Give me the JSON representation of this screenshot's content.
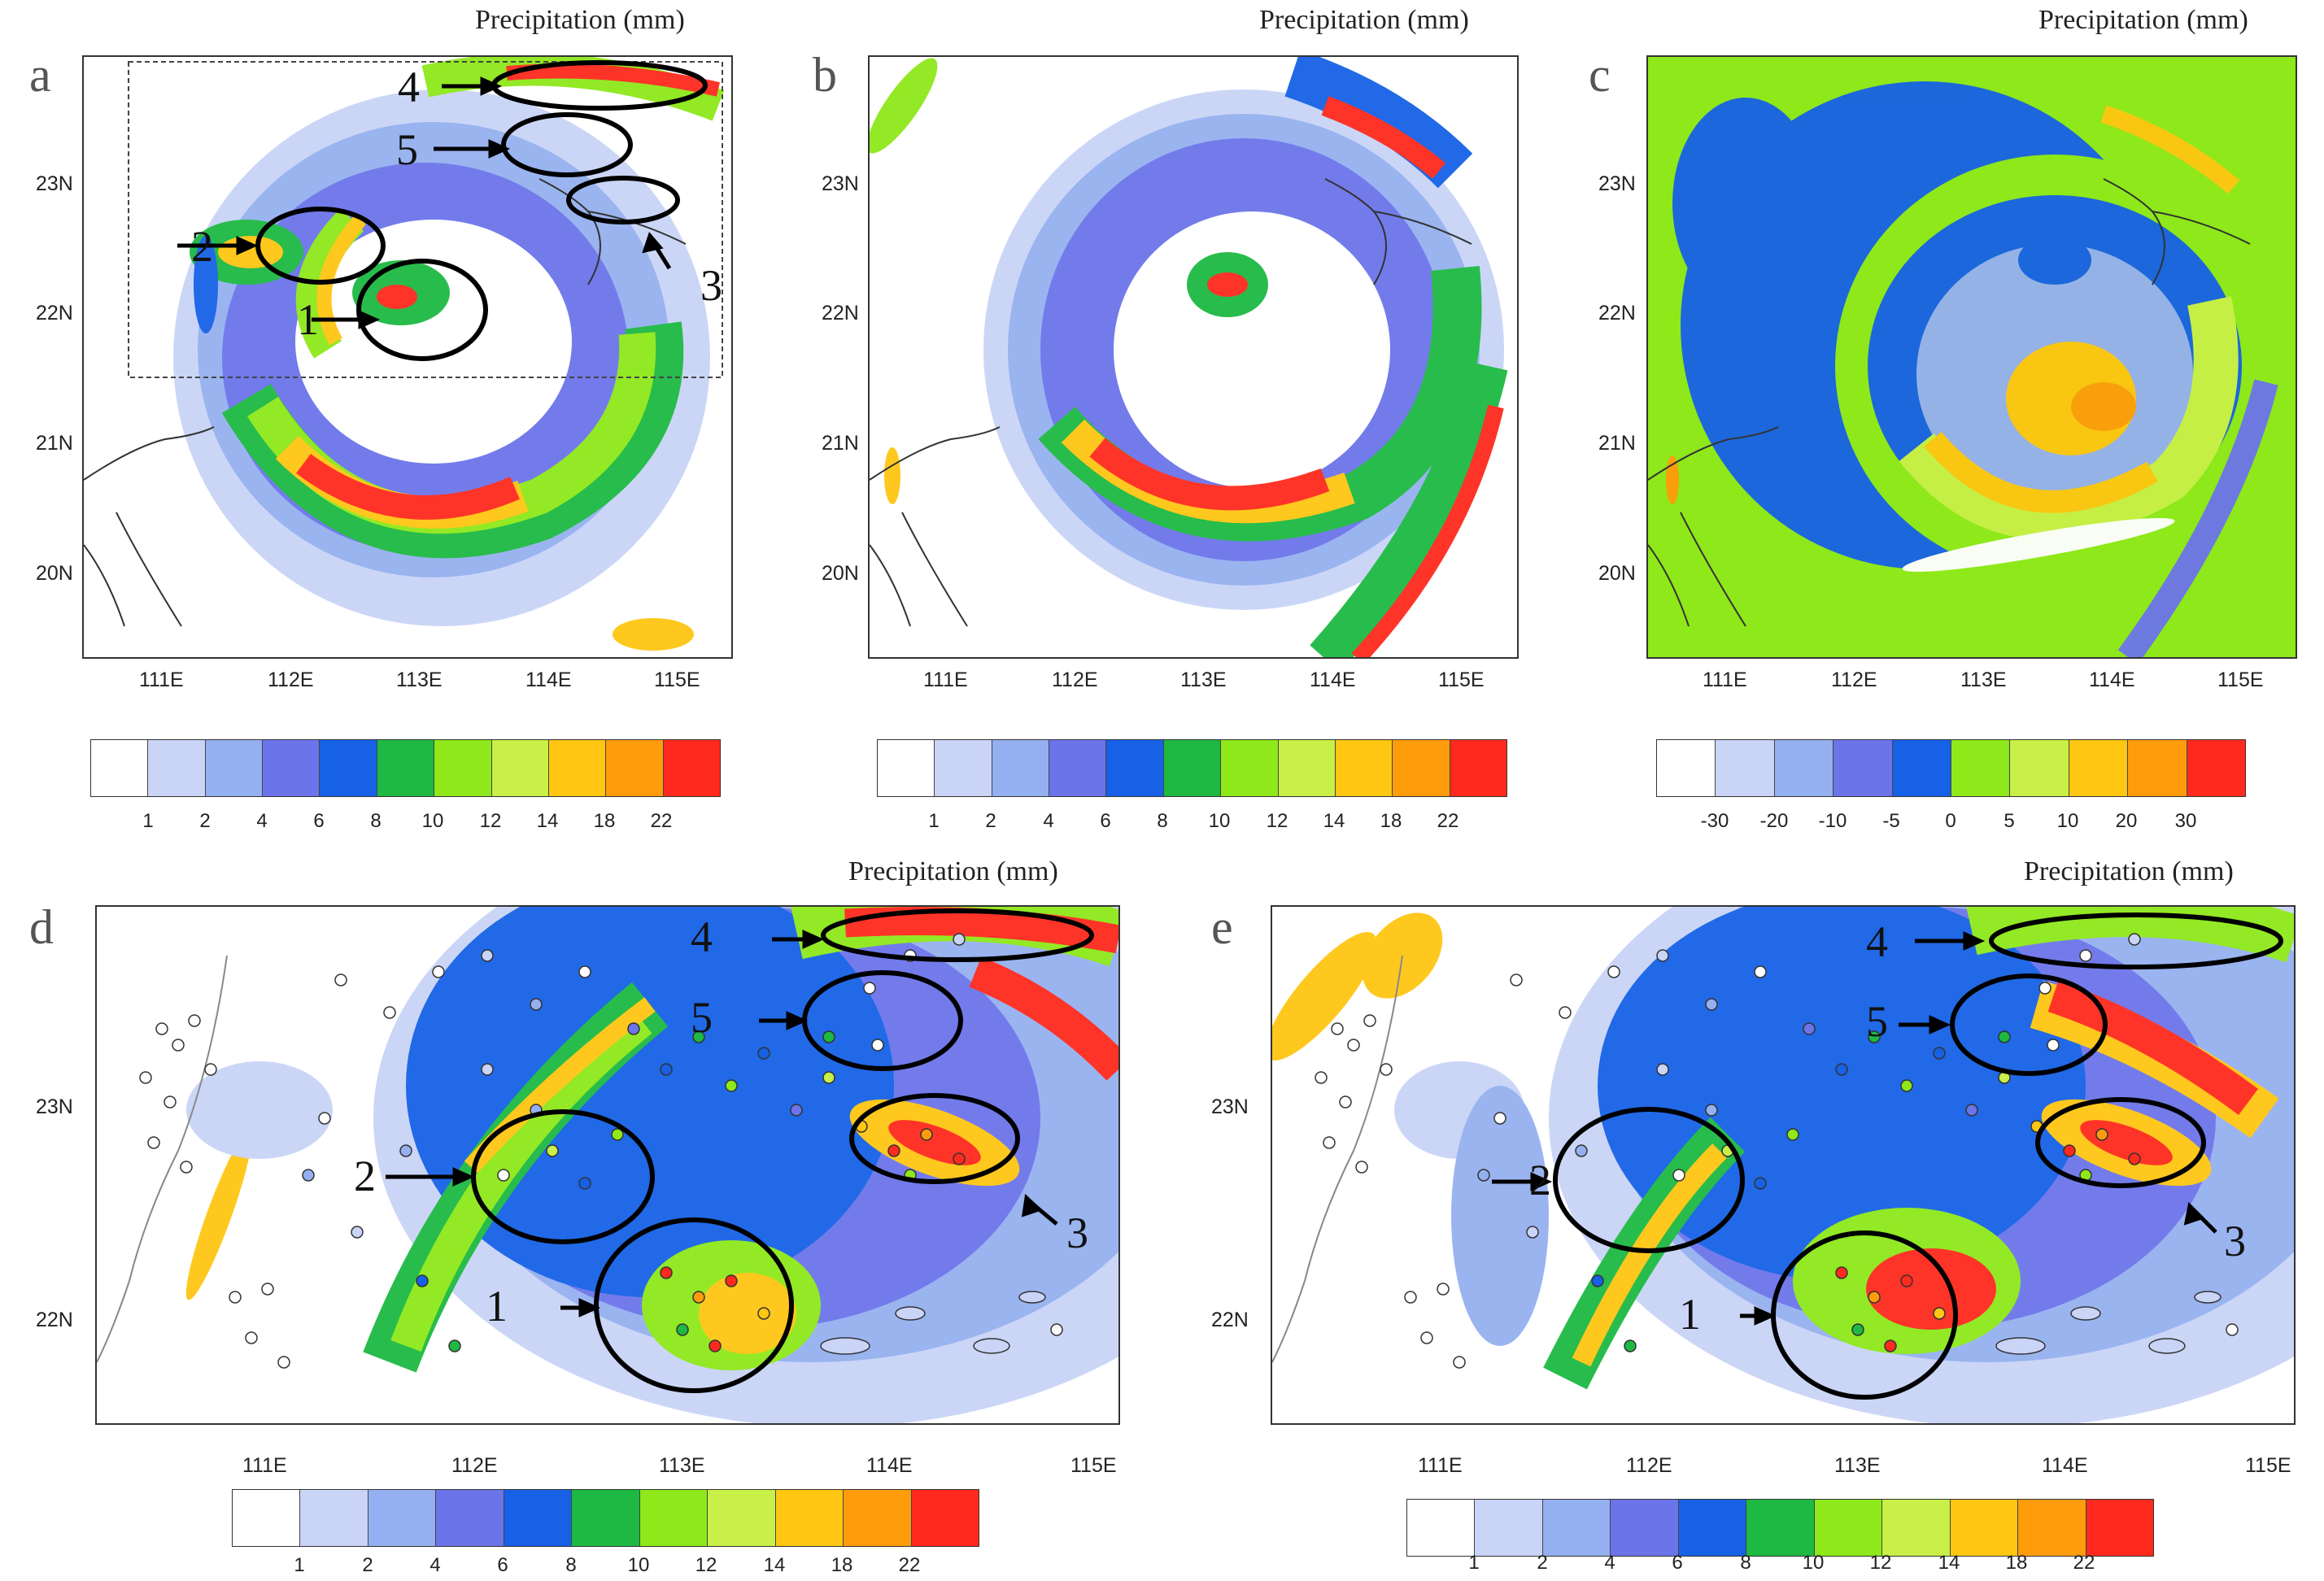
{
  "colorbar_label": "Precipitation (mm)",
  "legend_colors": [
    "#ffffff",
    "#c9d4f7",
    "#95b0f0",
    "#6c74ea",
    "#1661e6",
    "#1db943",
    "#8ee81a",
    "#c8f048",
    "#ffc612",
    "#ff9c0c",
    "#ff2a1d"
  ],
  "panels": [
    {
      "letter": "a",
      "title": "Precipitation (mm)",
      "x_ticks": [
        "111E",
        "112E",
        "113E",
        "114E",
        "115E"
      ],
      "y_ticks": [
        "23N",
        "22N",
        "21N",
        "20N"
      ],
      "colorbar_ticks": [
        "1",
        "2",
        "4",
        "6",
        "8",
        "10",
        "12",
        "14",
        "18",
        "22"
      ],
      "annotations": [
        "4",
        "5",
        "3",
        "2",
        "1"
      ]
    },
    {
      "letter": "b",
      "title": "Precipitation (mm)",
      "x_ticks": [
        "111E",
        "112E",
        "113E",
        "114E",
        "115E"
      ],
      "y_ticks": [
        "23N",
        "22N",
        "21N",
        "20N"
      ],
      "colorbar_ticks": [
        "1",
        "2",
        "4",
        "6",
        "8",
        "10",
        "12",
        "14",
        "18",
        "22"
      ]
    },
    {
      "letter": "c",
      "title": "Precipitation (mm)",
      "x_ticks": [
        "111E",
        "112E",
        "113E",
        "114E",
        "115E"
      ],
      "y_ticks": [
        "23N",
        "22N",
        "21N",
        "20N"
      ],
      "colorbar_ticks": [
        "-30",
        "-20",
        "-10",
        "-5",
        "0",
        "5",
        "10",
        "20",
        "30"
      ]
    },
    {
      "letter": "d",
      "title": "Precipitation (mm)",
      "x_ticks": [
        "111E",
        "112E",
        "113E",
        "114E",
        "115E"
      ],
      "y_ticks": [
        "23N",
        "22N"
      ],
      "colorbar_ticks": [
        "1",
        "2",
        "4",
        "6",
        "8",
        "10",
        "12",
        "14",
        "18",
        "22"
      ],
      "annotations": [
        "4",
        "5",
        "2",
        "1",
        "3"
      ]
    },
    {
      "letter": "e",
      "title": "Precipitation (mm)",
      "x_ticks": [
        "111E",
        "112E",
        "113E",
        "114E",
        "115E"
      ],
      "y_ticks": [
        "23N",
        "22N"
      ],
      "colorbar_ticks": [
        "1",
        "2",
        "4",
        "6",
        "8",
        "10",
        "12",
        "14",
        "18",
        "22"
      ],
      "annotations": [
        "4",
        "5",
        "2",
        "1",
        "3"
      ]
    }
  ]
}
